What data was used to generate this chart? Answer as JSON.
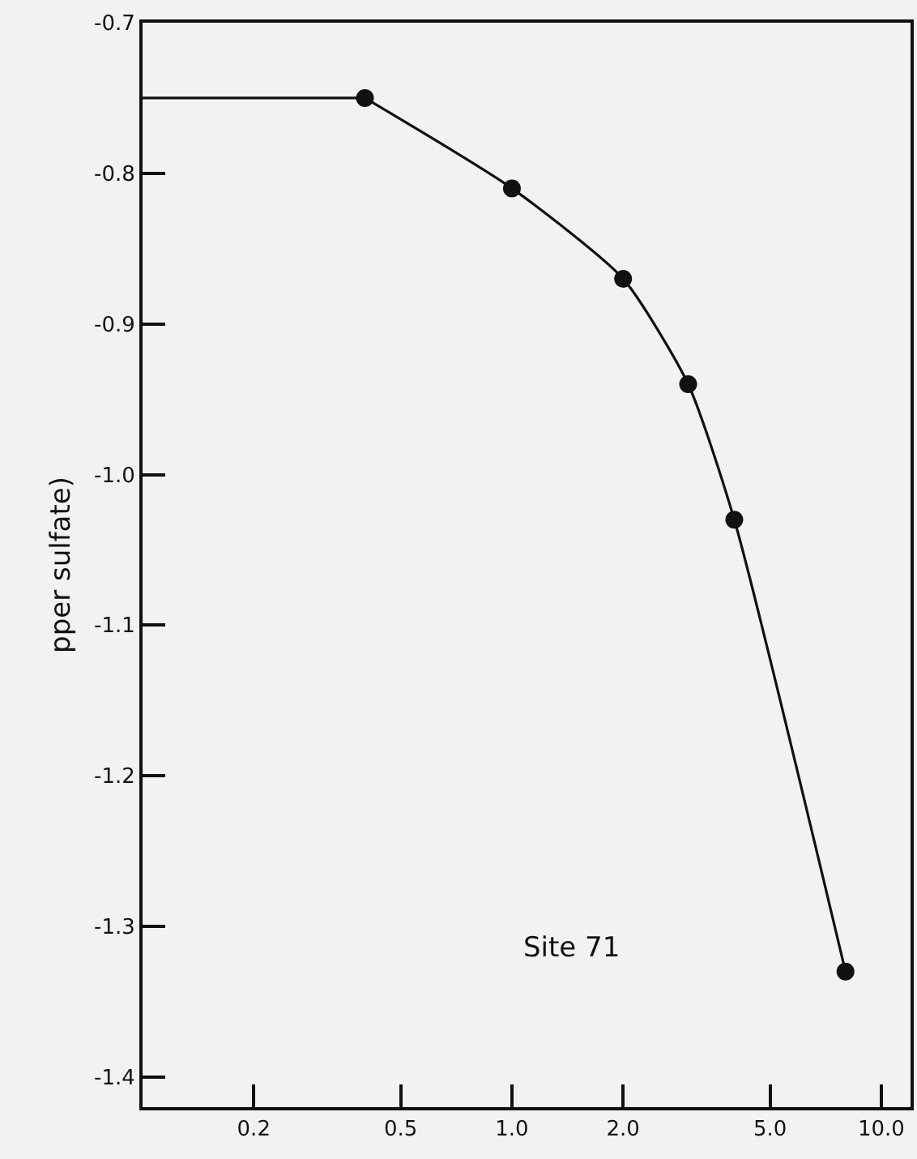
{
  "chart_data": {
    "type": "line",
    "ylabel": "pper sulfate)",
    "annotations": [
      "Site 71"
    ],
    "log": "x",
    "xlim": [
      0.1,
      12
    ],
    "ylim": [
      -1.42,
      -0.7
    ],
    "xticks": [
      0.2,
      0.5,
      {
        "value": 1,
        "label": "1.0"
      },
      {
        "value": 2,
        "label": "2.0"
      },
      {
        "value": 5,
        "label": "5.0"
      },
      {
        "value": 10,
        "label": "10.0"
      }
    ],
    "yticks": [
      -0.7,
      -0.8,
      -0.9,
      {
        "value": -1.0,
        "label": "-1.0"
      },
      -1.1,
      -1.2,
      -1.3,
      -1.4
    ],
    "grid": false,
    "line_style": "solid",
    "series": [
      {
        "color": "#111111",
        "x": [
          0.1,
          0.4
        ],
        "values": [
          -0.75,
          -0.75
        ]
      },
      {
        "color": "#111111",
        "marker": "circle",
        "x": [
          0.4,
          1.0,
          2.0,
          3.0,
          4.0,
          8.0
        ],
        "values": [
          -0.75,
          -0.81,
          -0.87,
          -0.94,
          -1.03,
          -1.33
        ]
      }
    ]
  }
}
